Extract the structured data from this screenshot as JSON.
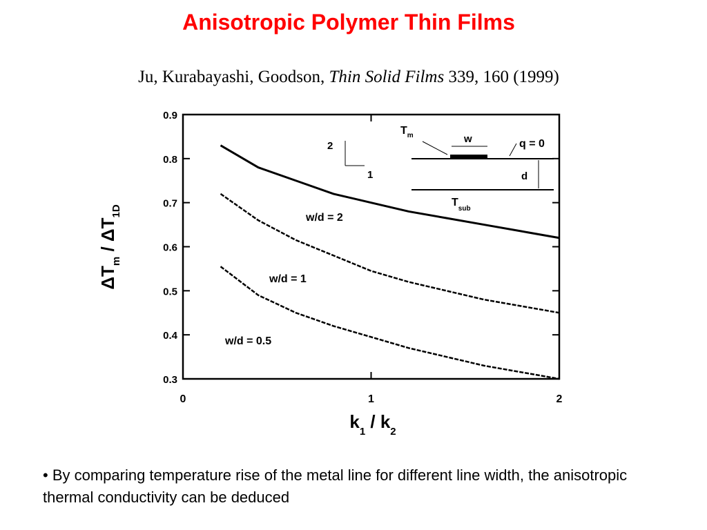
{
  "title": "Anisotropic Polymer Thin Films",
  "citation": {
    "authors": "Ju, Kurabayashi, Goodson,",
    "journal": "Thin Solid Films",
    "ref": "339, 160 (1999)"
  },
  "bullet": "• By comparing temperature rise of the metal line for different line width, the anisotropic thermal conductivity can be deduced",
  "chart_data": {
    "type": "line",
    "x_label": [
      "k",
      "1",
      " / k",
      "2"
    ],
    "y_label": [
      "ΔT",
      "m",
      " / ΔT",
      "1D"
    ],
    "x": [
      0.2,
      0.4,
      0.6,
      0.8,
      1.0,
      1.2,
      1.4,
      1.6,
      1.8,
      2.0
    ],
    "series": [
      {
        "name": "w/d = 2",
        "color": "#000000",
        "style": "solid",
        "values": [
          0.83,
          0.78,
          0.75,
          0.72,
          0.7,
          0.68,
          0.665,
          0.65,
          0.635,
          0.62
        ]
      },
      {
        "name": "w/d = 1",
        "color": "#000000",
        "style": "dashed",
        "values": [
          0.72,
          0.66,
          0.615,
          0.58,
          0.545,
          0.52,
          0.5,
          0.48,
          0.465,
          0.45
        ]
      },
      {
        "name": "w/d = 0.5",
        "color": "#000000",
        "style": "dashed",
        "values": [
          0.555,
          0.49,
          0.45,
          0.42,
          0.395,
          0.37,
          0.35,
          0.33,
          0.315,
          0.3
        ]
      }
    ],
    "xlim": [
      0,
      2
    ],
    "xticks": [
      0,
      1,
      2
    ],
    "ylim": [
      0.3,
      0.9
    ],
    "yticks": [
      0.3,
      0.4,
      0.5,
      0.6,
      0.7,
      0.8,
      0.9
    ],
    "inset": {
      "tm": "T",
      "tm_sub": "m",
      "w": "w",
      "q": "q = 0",
      "d": "d",
      "tsub": "T",
      "tsub_sub": "sub",
      "axis2": "2",
      "axis1": "1"
    }
  }
}
